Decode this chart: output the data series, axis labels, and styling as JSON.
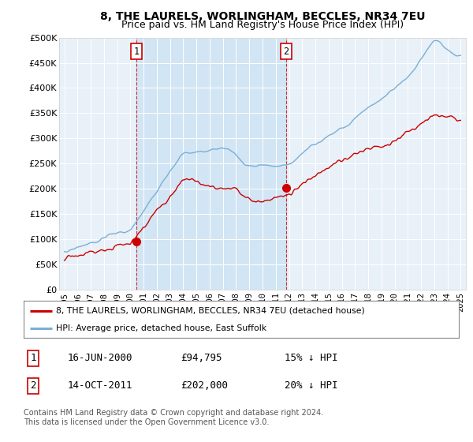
{
  "title": "8, THE LAURELS, WORLINGHAM, BECCLES, NR34 7EU",
  "subtitle": "Price paid vs. HM Land Registry's House Price Index (HPI)",
  "ylim": [
    0,
    500000
  ],
  "yticks": [
    0,
    50000,
    100000,
    150000,
    200000,
    250000,
    300000,
    350000,
    400000,
    450000,
    500000
  ],
  "ytick_labels": [
    "£0",
    "£50K",
    "£100K",
    "£150K",
    "£200K",
    "£250K",
    "£300K",
    "£350K",
    "£400K",
    "£450K",
    "£500K"
  ],
  "bg_color": "#ffffff",
  "plot_bg_color": "#e8f0f8",
  "grid_color": "#ffffff",
  "red_color": "#cc0000",
  "blue_color": "#7bafd4",
  "shade_color": "#d0e4f4",
  "marker1_year": 2000.46,
  "marker1_value": 94795,
  "marker2_year": 2011.79,
  "marker2_value": 202000,
  "legend_red": "8, THE LAURELS, WORLINGHAM, BECCLES, NR34 7EU (detached house)",
  "legend_blue": "HPI: Average price, detached house, East Suffolk",
  "table_row1": [
    "1",
    "16-JUN-2000",
    "£94,795",
    "15% ↓ HPI"
  ],
  "table_row2": [
    "2",
    "14-OCT-2011",
    "£202,000",
    "20% ↓ HPI"
  ],
  "footer": "Contains HM Land Registry data © Crown copyright and database right 2024.\nThis data is licensed under the Open Government Licence v3.0.",
  "title_fontsize": 10,
  "subtitle_fontsize": 9
}
